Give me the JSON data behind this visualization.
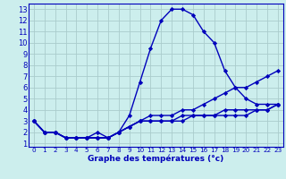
{
  "xlabel": "Graphe des températures (°c)",
  "hours": [
    0,
    1,
    2,
    3,
    4,
    5,
    6,
    7,
    8,
    9,
    10,
    11,
    12,
    13,
    14,
    15,
    16,
    17,
    18,
    19,
    20,
    21,
    22,
    23
  ],
  "temp_actual": [
    3,
    2,
    2,
    1.5,
    1.5,
    1.5,
    2,
    1.5,
    2,
    3.5,
    6.5,
    9.5,
    12,
    13,
    13,
    12.5,
    11,
    10,
    7.5,
    6,
    5,
    4.5,
    4.5,
    4.5
  ],
  "temp_line2": [
    3,
    2,
    2,
    1.5,
    1.5,
    1.5,
    1.5,
    1.5,
    2,
    2.5,
    3,
    3.5,
    3.5,
    3.5,
    4,
    4,
    4.5,
    5,
    5.5,
    6,
    6,
    6.5,
    7,
    7.5
  ],
  "temp_line3": [
    3,
    2,
    2,
    1.5,
    1.5,
    1.5,
    1.5,
    1.5,
    2,
    2.5,
    3,
    3,
    3,
    3,
    3.5,
    3.5,
    3.5,
    3.5,
    4,
    4,
    4,
    4,
    4,
    4.5
  ],
  "temp_line4": [
    3,
    2,
    2,
    1.5,
    1.5,
    1.5,
    1.5,
    1.5,
    2,
    2.5,
    3,
    3,
    3,
    3,
    3,
    3.5,
    3.5,
    3.5,
    3.5,
    3.5,
    3.5,
    4,
    4,
    4.5
  ],
  "ylim": [
    1,
    13
  ],
  "xlim": [
    0,
    23
  ],
  "yticks": [
    1,
    2,
    3,
    4,
    5,
    6,
    7,
    8,
    9,
    10,
    11,
    12,
    13
  ],
  "xticks": [
    0,
    1,
    2,
    3,
    4,
    5,
    6,
    7,
    8,
    9,
    10,
    11,
    12,
    13,
    14,
    15,
    16,
    17,
    18,
    19,
    20,
    21,
    22,
    23
  ],
  "line_color": "#0000bb",
  "bg_color": "#cceeed",
  "grid_color": "#aacccc",
  "marker": "D",
  "marker_size": 2.2,
  "line_width": 1.0
}
